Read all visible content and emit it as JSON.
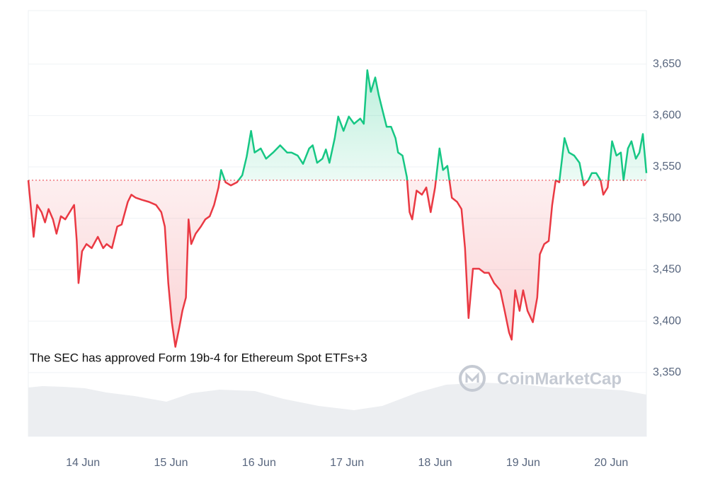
{
  "chart_data": {
    "type": "line",
    "annotation": "The SEC has approved Form 19b-4 for Ethereum Spot ETFs+3",
    "watermark": "CoinMarketCap",
    "xlim": [
      13.38,
      20.4
    ],
    "ylim": [
      3288,
      3702
    ],
    "xticks": [
      {
        "value": 14,
        "label": "14 Jun"
      },
      {
        "value": 15,
        "label": "15 Jun"
      },
      {
        "value": 16,
        "label": "16 Jun"
      },
      {
        "value": 17,
        "label": "17 Jun"
      },
      {
        "value": 18,
        "label": "18 Jun"
      },
      {
        "value": 19,
        "label": "19 Jun"
      },
      {
        "value": 20,
        "label": "20 Jun"
      }
    ],
    "yticks": [
      {
        "value": 3350,
        "label": "3,350"
      },
      {
        "value": 3400,
        "label": "3,400"
      },
      {
        "value": 3450,
        "label": "3,450"
      },
      {
        "value": 3500,
        "label": "3,500"
      },
      {
        "value": 3550,
        "label": "3,550"
      },
      {
        "value": 3600,
        "label": "3,600"
      },
      {
        "value": 3650,
        "label": "3,650"
      }
    ],
    "grid": true,
    "baseline": 3537,
    "up_color": "#16c784",
    "down_color": "#ea3943",
    "x": [
      13.38,
      13.44,
      13.48,
      13.53,
      13.57,
      13.61,
      13.66,
      13.7,
      13.75,
      13.8,
      13.85,
      13.9,
      13.93,
      13.95,
      13.99,
      14.04,
      14.1,
      14.17,
      14.23,
      14.27,
      14.33,
      14.39,
      14.44,
      14.51,
      14.55,
      14.6,
      14.67,
      14.75,
      14.83,
      14.89,
      14.93,
      14.97,
      15.01,
      15.05,
      15.09,
      15.13,
      15.17,
      15.2,
      15.23,
      15.28,
      15.34,
      15.39,
      15.44,
      15.49,
      15.54,
      15.57,
      15.62,
      15.68,
      15.75,
      15.81,
      15.86,
      15.91,
      15.95,
      16.02,
      16.08,
      16.16,
      16.24,
      16.32,
      16.37,
      16.44,
      16.5,
      16.57,
      16.61,
      16.66,
      16.72,
      16.76,
      16.8,
      16.86,
      16.9,
      16.96,
      17.02,
      17.08,
      17.15,
      17.19,
      17.23,
      17.27,
      17.32,
      17.36,
      17.4,
      17.45,
      17.5,
      17.55,
      17.58,
      17.63,
      17.68,
      17.71,
      17.74,
      17.79,
      17.85,
      17.9,
      17.95,
      18.0,
      18.05,
      18.09,
      18.14,
      18.19,
      18.25,
      18.3,
      18.34,
      18.38,
      18.43,
      18.5,
      18.56,
      18.61,
      18.67,
      18.74,
      18.79,
      18.84,
      18.87,
      18.91,
      18.96,
      19.0,
      19.05,
      19.11,
      19.16,
      19.19,
      19.24,
      19.29,
      19.33,
      19.37,
      19.41,
      19.47,
      19.52,
      19.58,
      19.64,
      19.69,
      19.74,
      19.78,
      19.83,
      19.88,
      19.91,
      19.96,
      20.01,
      20.06,
      20.11,
      20.14,
      20.19,
      20.23,
      20.28,
      20.32,
      20.36,
      20.4
    ],
    "values": [
      3537,
      3482,
      3513,
      3506,
      3496,
      3509,
      3499,
      3485,
      3502,
      3499,
      3506,
      3513,
      3478,
      3437,
      3468,
      3475,
      3471,
      3482,
      3471,
      3475,
      3471,
      3492,
      3494,
      3516,
      3523,
      3520,
      3518,
      3516,
      3513,
      3506,
      3492,
      3437,
      3399,
      3375,
      3392,
      3410,
      3423,
      3499,
      3475,
      3485,
      3492,
      3499,
      3502,
      3513,
      3530,
      3547,
      3535,
      3532,
      3535,
      3542,
      3560,
      3585,
      3564,
      3568,
      3558,
      3564,
      3571,
      3564,
      3564,
      3561,
      3553,
      3568,
      3571,
      3554,
      3558,
      3567,
      3554,
      3578,
      3599,
      3585,
      3599,
      3592,
      3597,
      3592,
      3644,
      3623,
      3637,
      3620,
      3606,
      3589,
      3589,
      3578,
      3564,
      3561,
      3540,
      3506,
      3499,
      3527,
      3523,
      3530,
      3506,
      3530,
      3568,
      3547,
      3551,
      3520,
      3516,
      3509,
      3471,
      3403,
      3451,
      3451,
      3447,
      3447,
      3437,
      3430,
      3410,
      3389,
      3382,
      3430,
      3410,
      3430,
      3410,
      3399,
      3423,
      3465,
      3475,
      3478,
      3513,
      3537,
      3535,
      3578,
      3564,
      3561,
      3554,
      3532,
      3537,
      3544,
      3544,
      3537,
      3523,
      3530,
      3575,
      3561,
      3564,
      3537,
      3568,
      3575,
      3558,
      3564,
      3582,
      3544
    ]
  }
}
